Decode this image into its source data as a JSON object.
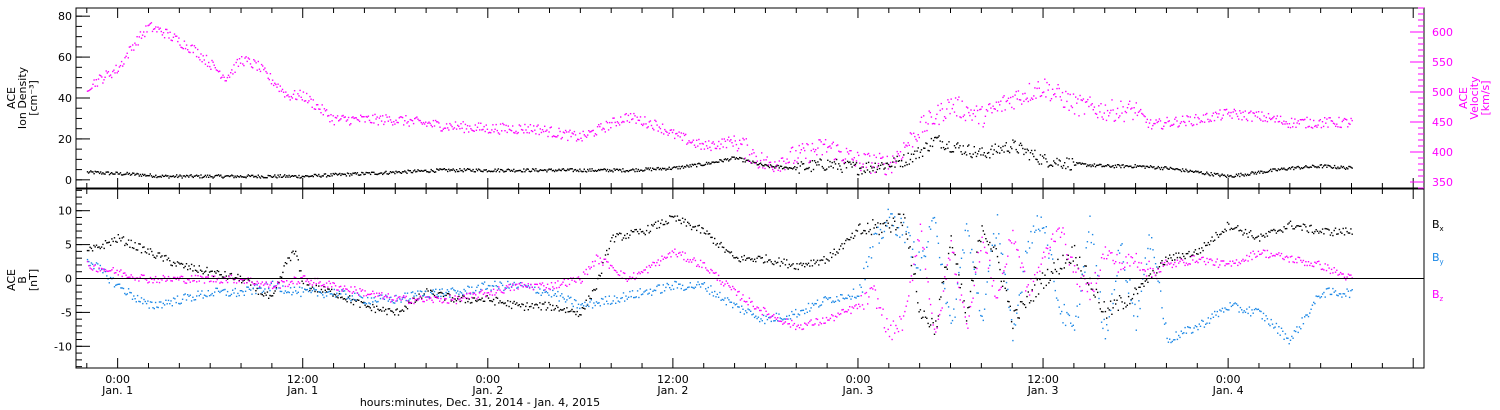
{
  "chart_data": [
    {
      "type": "scatter",
      "panel": "top",
      "ylabel": [
        "ACE",
        "Ion Density",
        "[cm⁻³]"
      ],
      "ylabel_right": [
        "ACE",
        "Velocity",
        "[km/s]"
      ],
      "ylim": [
        -4,
        84
      ],
      "ylim_right": [
        340,
        640
      ],
      "yticks": [
        0,
        20,
        40,
        60,
        80
      ],
      "yticks_right": [
        350,
        400,
        450,
        500,
        550,
        600
      ],
      "grid": false,
      "series": [
        {
          "axis": "left",
          "color": "#000000",
          "x": [
            -2,
            1,
            3,
            6,
            9,
            12,
            15,
            18,
            21,
            24,
            27,
            30,
            33,
            36,
            38,
            40,
            42,
            44,
            46,
            48,
            50,
            51,
            52,
            53,
            54,
            56,
            58,
            60,
            62,
            64,
            66,
            68,
            70,
            72,
            74,
            76,
            78,
            80
          ],
          "y": [
            4,
            3,
            2,
            2,
            2,
            2,
            3,
            4,
            5,
            5,
            5,
            5,
            5,
            6,
            8,
            11,
            7,
            6,
            8,
            6,
            8,
            10,
            14,
            20,
            17,
            13,
            17,
            10,
            8,
            7,
            7,
            6,
            4,
            2,
            4,
            6,
            7,
            6
          ]
        },
        {
          "axis": "right",
          "color": "#ff00ff",
          "x": [
            -2,
            0,
            1,
            2,
            3,
            5,
            7,
            8,
            9,
            10,
            11,
            12,
            14,
            18,
            21,
            24,
            27,
            30,
            33,
            35,
            36,
            38,
            40,
            42,
            44,
            46,
            48,
            50,
            52,
            54,
            56,
            58,
            60,
            61,
            62,
            64,
            66,
            67,
            68,
            70,
            72,
            74,
            76,
            78,
            80
          ],
          "y": [
            510,
            540,
            580,
            610,
            600,
            570,
            525,
            555,
            545,
            520,
            495,
            495,
            455,
            455,
            445,
            440,
            440,
            425,
            460,
            445,
            430,
            410,
            420,
            380,
            395,
            410,
            385,
            380,
            440,
            480,
            460,
            490,
            510,
            495,
            480,
            470,
            470,
            445,
            450,
            455,
            465,
            460,
            450,
            450,
            450
          ]
        }
      ]
    },
    {
      "type": "scatter",
      "panel": "bottom",
      "ylabel": [
        "ACE",
        "B",
        "[nT]"
      ],
      "ylim": [
        -13.2,
        13.2
      ],
      "yticks": [
        -10,
        -5,
        0,
        5,
        10
      ],
      "grid": false,
      "zero_line": true,
      "legend_position": "right",
      "legend": [
        "B",
        "B",
        "B"
      ],
      "legend_subscripts": [
        "x",
        "y",
        "z"
      ],
      "series": [
        {
          "name": "Bx",
          "color": "#000000",
          "x": [
            -2,
            0,
            2,
            4,
            6,
            8,
            10,
            11,
            11.5,
            12,
            14,
            16,
            18,
            20,
            22,
            24,
            26,
            28,
            30,
            31,
            32,
            34,
            36,
            38,
            40,
            42,
            44,
            46,
            48,
            50,
            51,
            52,
            53,
            54,
            55,
            56,
            57,
            58,
            60,
            62,
            64,
            66,
            68,
            70,
            72,
            74,
            76,
            78,
            80
          ],
          "y": [
            4,
            6,
            4,
            2,
            1,
            0,
            -3,
            3,
            4,
            -1,
            -2,
            -4,
            -5,
            -2,
            -3,
            -3,
            -4,
            -4,
            -5,
            -1,
            6,
            7,
            9,
            7,
            3,
            3,
            2,
            3,
            7,
            8,
            9,
            -5,
            -7,
            6,
            -6,
            8,
            3,
            -6,
            0,
            4,
            -5,
            -2,
            3,
            4,
            8,
            6,
            8,
            7,
            7
          ]
        },
        {
          "name": "By",
          "color": "#1a87e6",
          "x": [
            -2,
            0,
            2,
            4,
            6,
            8,
            10,
            12,
            14,
            16,
            18,
            20,
            22,
            24,
            26,
            28,
            30,
            32,
            34,
            36,
            38,
            40,
            42,
            44,
            46,
            48,
            49,
            50,
            51,
            52,
            53,
            54,
            55,
            56,
            57,
            58,
            59,
            60,
            61,
            62,
            63,
            64,
            65,
            66,
            67,
            68,
            70,
            72,
            74,
            76,
            78,
            80
          ],
          "y": [
            3,
            -1,
            -4,
            -3,
            -2,
            -2,
            -1,
            -2,
            -2,
            -3,
            -3,
            -2,
            -2,
            -1,
            -1,
            -2,
            -4,
            -3,
            -2,
            -1,
            -1,
            -4,
            -6,
            -5,
            -3,
            -2,
            5,
            9,
            7,
            2,
            9,
            -8,
            8,
            -6,
            9,
            -9,
            6,
            9,
            -4,
            -8,
            8,
            -9,
            5,
            -6,
            7,
            -9,
            -7,
            -4,
            -5,
            -9,
            -2,
            -2
          ]
        },
        {
          "name": "Bz",
          "color": "#ff00ff",
          "x": [
            -2,
            0,
            2,
            4,
            6,
            8,
            10,
            12,
            14,
            16,
            18,
            20,
            22,
            24,
            26,
            28,
            30,
            31,
            32,
            33,
            34,
            36,
            38,
            40,
            42,
            44,
            46,
            48,
            49,
            50,
            51,
            52,
            53,
            54,
            55,
            56,
            57,
            58,
            59,
            60,
            61,
            62,
            63,
            64,
            65,
            66,
            67,
            68,
            70,
            72,
            74,
            76,
            78,
            80
          ],
          "y": [
            2,
            1,
            0,
            0,
            0,
            0,
            -1,
            0,
            -1,
            -2,
            -3,
            -3,
            -3,
            -2,
            -1,
            -1,
            0,
            3,
            2,
            0,
            1,
            4,
            2,
            -2,
            -5,
            -7,
            -6,
            -4,
            -2,
            -8,
            -6,
            8,
            -9,
            5,
            -7,
            6,
            -3,
            7,
            -2,
            3,
            8,
            1,
            -2,
            4,
            2,
            3,
            1,
            2,
            3,
            2,
            4,
            3,
            2,
            0
          ]
        }
      ]
    }
  ],
  "x_axis": {
    "range": [
      -2.7,
      84.7
    ],
    "ticks": [
      {
        "hours": 0,
        "time": "0:00",
        "date": "Jan. 1"
      },
      {
        "hours": 12,
        "time": "12:00",
        "date": "Jan. 1"
      },
      {
        "hours": 24,
        "time": "0:00",
        "date": "Jan. 2"
      },
      {
        "hours": 36,
        "time": "12:00",
        "date": "Jan. 2"
      },
      {
        "hours": 48,
        "time": "0:00",
        "date": "Jan. 3"
      },
      {
        "hours": 60,
        "time": "12:00",
        "date": "Jan. 3"
      },
      {
        "hours": 72,
        "time": "0:00",
        "date": "Jan. 4"
      }
    ],
    "minor_every_hours": 2,
    "title": "hours:minutes, Dec. 31, 2014 - Jan.  4, 2015"
  },
  "colors": {
    "black": "#000000",
    "magenta": "#ff00ff",
    "blue": "#1a87e6"
  }
}
